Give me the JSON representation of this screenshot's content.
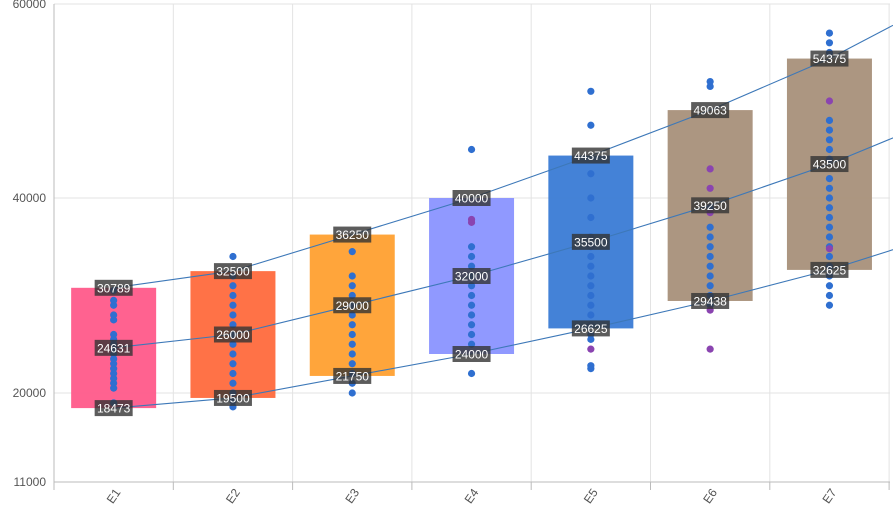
{
  "chart_data": {
    "type": "bar",
    "subtype": "floating-bar-with-scatter-and-trend-lines",
    "title": "",
    "xlabel": "",
    "ylabel": "",
    "grid": true,
    "legend": "none",
    "ylim": [
      11000,
      60000
    ],
    "y_ticks": [
      "11000",
      "20000",
      "40000",
      "60000"
    ],
    "categories": [
      "E1",
      "E2",
      "E3",
      "E4",
      "E5",
      "E6",
      "E7"
    ],
    "bar_colors": [
      "#ff5a8a",
      "#ff6a3d",
      "#ffa030",
      "#8a93ff",
      "#3a7bd5",
      "#a8907a",
      "#a8907a"
    ],
    "boxes": [
      {
        "low": 18473,
        "mid": 24631,
        "high": 30789
      },
      {
        "low": 19500,
        "mid": 26000,
        "high": 32500
      },
      {
        "low": 21750,
        "mid": 29000,
        "high": 36250
      },
      {
        "low": 24000,
        "mid": 32000,
        "high": 40000
      },
      {
        "low": 26625,
        "mid": 35500,
        "high": 44375
      },
      {
        "low": 29438,
        "mid": 39250,
        "high": 49063
      },
      {
        "low": 32625,
        "mid": 43500,
        "high": 54375
      }
    ],
    "labels": [
      {
        "low": "18473",
        "mid": "24631",
        "high": "30789"
      },
      {
        "low": "19500",
        "mid": "26000",
        "high": "32500"
      },
      {
        "low": "21750",
        "mid": "29000",
        "high": "36250"
      },
      {
        "low": "24000",
        "mid": "32000",
        "high": "40000"
      },
      {
        "low": "26625",
        "mid": "35500",
        "high": "44375"
      },
      {
        "low": "29438",
        "mid": "39250",
        "high": "49063"
      },
      {
        "low": "32625",
        "mid": "43500",
        "high": "54375"
      }
    ],
    "scatter_colors": {
      "main": "#2f6fd0",
      "accent": "#8a44b0"
    },
    "scatter": [
      {
        "main": [
          19000,
          20500,
          21000,
          21500,
          22000,
          22500,
          23000,
          23500,
          24000,
          24500,
          25000,
          25500,
          26000,
          27500,
          28000,
          29000,
          29500,
          30500
        ],
        "accent": []
      },
      {
        "main": [
          18600,
          19200,
          20000,
          21000,
          22000,
          23000,
          24000,
          25000,
          26000,
          27000,
          28000,
          29000,
          30000,
          31000,
          32000,
          34000
        ],
        "accent": []
      },
      {
        "main": [
          20000,
          21000,
          22000,
          23000,
          24000,
          25000,
          26000,
          27000,
          28000,
          29000,
          30000,
          31000,
          32000,
          34500
        ],
        "accent": []
      },
      {
        "main": [
          22000,
          25000,
          26000,
          27000,
          28000,
          29000,
          30000,
          31000,
          32000,
          33000,
          34000,
          35000,
          45000
        ],
        "accent": [
          37500,
          37800
        ]
      },
      {
        "main": [
          22500,
          22800,
          25500,
          26000,
          27000,
          28000,
          29000,
          30000,
          31000,
          32000,
          33000,
          34000,
          35000,
          36000,
          38000,
          40000,
          42500,
          47500,
          51000
        ],
        "accent": [
          24500
        ]
      },
      {
        "main": [
          29000,
          30000,
          31000,
          32000,
          33000,
          34000,
          35000,
          36000,
          37000,
          39000,
          51500,
          52000
        ],
        "accent": [
          24500,
          28500,
          38500,
          41000,
          43000
        ]
      },
      {
        "main": [
          29000,
          30000,
          31000,
          32000,
          33000,
          34000,
          35000,
          36000,
          37000,
          38000,
          39000,
          40000,
          41000,
          42000,
          44000,
          45000,
          46000,
          47000,
          48000,
          55000,
          56000,
          57000
        ],
        "accent": [
          34800,
          50000
        ]
      }
    ],
    "trend_lines": [
      {
        "y": [
          18473,
          19500,
          21750,
          24000,
          26625,
          29438,
          32625
        ],
        "end": 34700
      },
      {
        "y": [
          24631,
          26000,
          29000,
          32000,
          35500,
          39250,
          43500
        ],
        "end": 46200
      },
      {
        "y": [
          30789,
          32500,
          36250,
          40000,
          44375,
          49063,
          54375
        ],
        "end": 57800
      }
    ]
  }
}
